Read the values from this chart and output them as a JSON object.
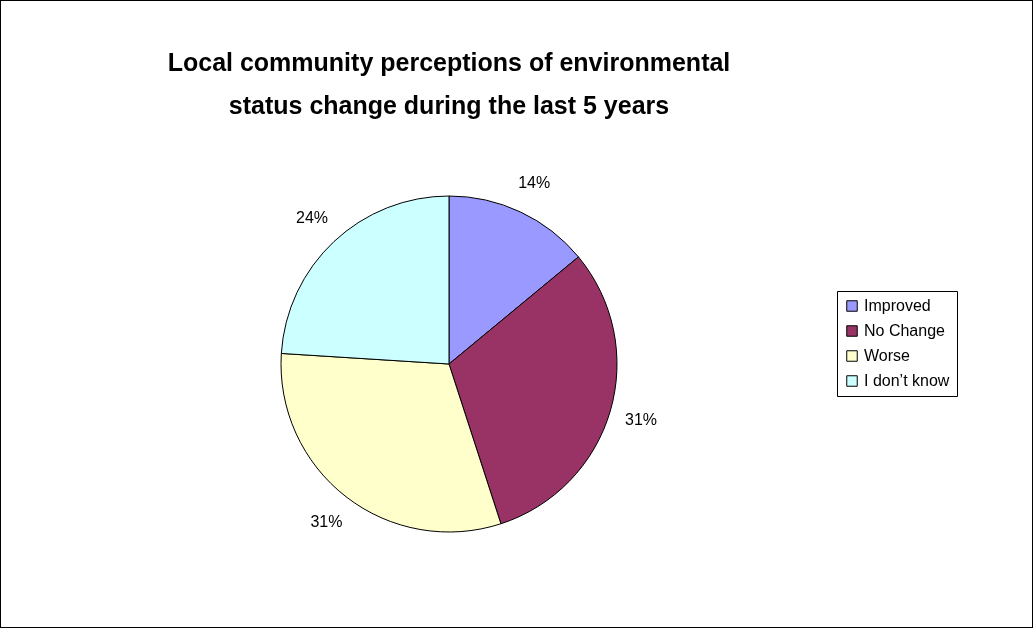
{
  "chart_data": {
    "type": "pie",
    "title": "Local community perceptions of environmental status change during the last 5 years",
    "categories": [
      "Improved",
      "No Change",
      "Worse",
      "I don’t know"
    ],
    "values": [
      14,
      31,
      31,
      24
    ],
    "value_labels": [
      "14%",
      "31%",
      "31%",
      "24%"
    ],
    "colors": [
      "#9999ff",
      "#993366",
      "#ffffcc",
      "#ccffff"
    ],
    "legend": "right"
  }
}
